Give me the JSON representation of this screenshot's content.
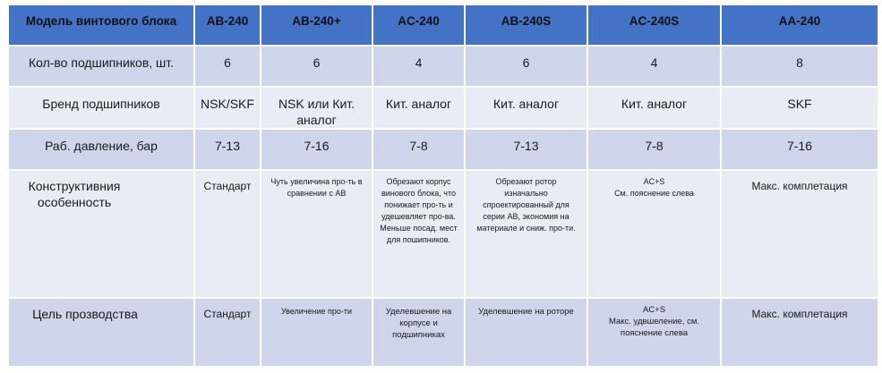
{
  "header": [
    "Модель винтового блока",
    "AB-240",
    "AB-240+",
    "AC-240",
    "AB-240S",
    "AC-240S",
    "AA-240"
  ],
  "rows": [
    {
      "label": "Кол-во подшипников, шт.",
      "cells": [
        "6",
        "6",
        "4",
        "6",
        "4",
        "8"
      ]
    },
    {
      "label": "Бренд подшипников",
      "cells": [
        "NSK/SKF",
        "NSK или Кит. аналог",
        "Кит. аналог",
        "Кит. аналог",
        "Кит. аналог",
        "SKF"
      ]
    },
    {
      "label": "Раб. давление, бар",
      "cells": [
        "7-13",
        "7-16",
        "7-8",
        "7-13",
        "7-8",
        "7-16"
      ]
    },
    {
      "label": "Конструктивния особенность",
      "cells": [
        "Стандарт",
        "Чуть увеличина про-ть  в сравнении с АВ",
        "Обрезают корпус винового блока, что понижает про-ть и удешевляет про-ва. Меньше посад. мест для пошипников.",
        "Обрезают ротор изначально спроектированный для серии АВ, экономия на материале и сниж. про-ти.",
        "AC+S\nСм. пояснение слева",
        "Макс. комплетация"
      ]
    },
    {
      "label": "Цель прозводства",
      "cells": [
        "Стандарт",
        "Увеличение про-ти",
        "Уделевшение на корпусе и подшипниках",
        "Уделевшение на роторе",
        "AC+S\nМакс. удвшеление, см. пояснение слева",
        "Макс. комплетация"
      ]
    }
  ],
  "colors": {
    "header": "#4472C4",
    "row_dark": "#CFD5EA",
    "row_light": "#E9EBF5"
  }
}
